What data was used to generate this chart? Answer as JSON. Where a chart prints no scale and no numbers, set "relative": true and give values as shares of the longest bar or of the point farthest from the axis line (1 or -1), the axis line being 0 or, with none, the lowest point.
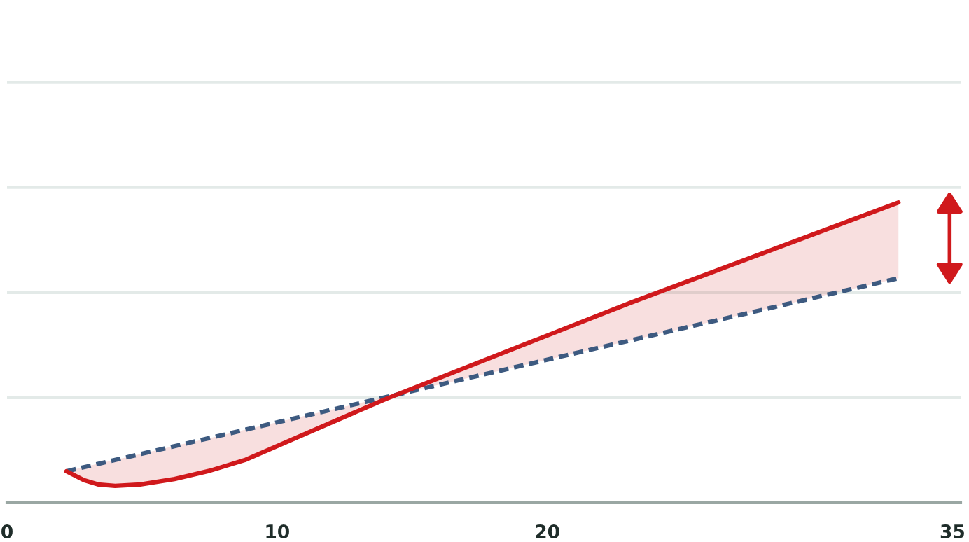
{
  "chart_data": {
    "type": "line",
    "relative": true,
    "x": [
      2.2,
      2.85,
      3.37,
      4.0,
      4.93,
      6.2,
      7.52,
      8.8,
      14.0,
      23.1,
      33.0
    ],
    "series": [
      {
        "color": "#d0191c",
        "line_style": "solid",
        "values": [
          0.105,
          0.075,
          0.061,
          0.056,
          0.061,
          0.079,
          0.107,
          0.142,
          0.345,
          0.667,
          1.0
        ],
        "lower": [
          0.105,
          0.119,
          0.13,
          0.143,
          0.162,
          0.189,
          0.216,
          0.243,
          0.352,
          0.541,
          0.748
        ],
        "upper": [
          0.105,
          0.075,
          0.061,
          0.056,
          0.061,
          0.079,
          0.107,
          0.142,
          0.345,
          0.667,
          1.0
        ]
      },
      {
        "color": "#3d5a80",
        "line_style": "dashed",
        "x": [
          2.2,
          33.0
        ],
        "values": [
          0.105,
          0.748
        ]
      }
    ],
    "xlim": [
      0,
      35.3
    ],
    "xticks": [
      0,
      10,
      20,
      35
    ],
    "ref_lines": [
      {
        "axis": "y",
        "value": 0.35,
        "color": "#e3eae8"
      },
      {
        "axis": "y",
        "value": 0.7,
        "color": "#e3eae8"
      },
      {
        "axis": "y",
        "value": 1.05,
        "color": "#e3eae8"
      },
      {
        "axis": "y",
        "value": 1.4,
        "color": "#e3eae8"
      }
    ],
    "marker": "none"
  }
}
